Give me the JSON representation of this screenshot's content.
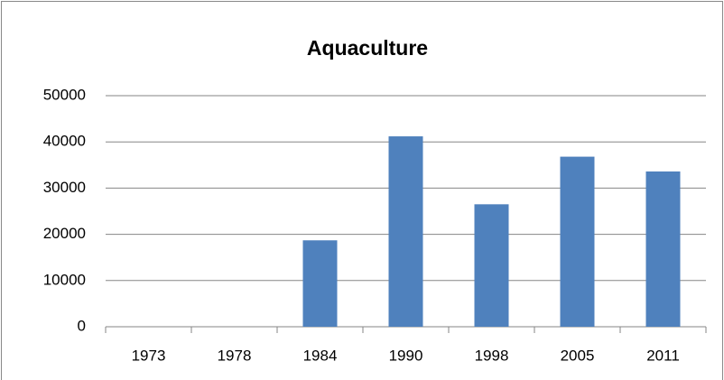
{
  "chart_data": {
    "type": "bar",
    "title": "Aquaculture",
    "categories": [
      "1973",
      "1978",
      "1984",
      "1990",
      "1998",
      "2005",
      "2011"
    ],
    "values": [
      0,
      0,
      18700,
      41200,
      26500,
      36800,
      33600
    ],
    "color": "#4f81bd",
    "ylim": [
      0,
      50000
    ],
    "yticks": [
      0,
      10000,
      20000,
      30000,
      40000,
      50000
    ],
    "grid": true
  }
}
